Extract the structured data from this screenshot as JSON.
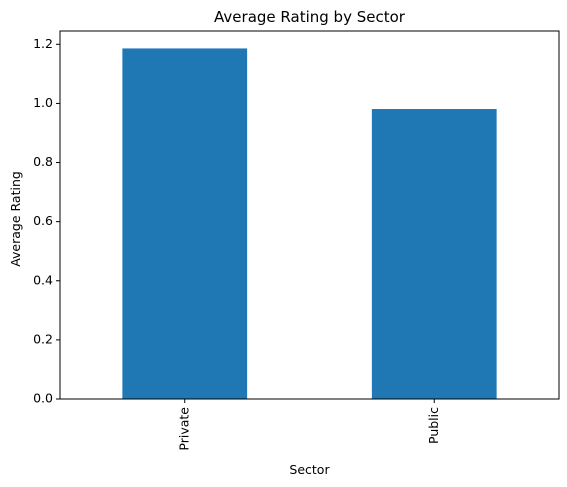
{
  "chart_data": {
    "type": "bar",
    "title": "Average Rating by Sector",
    "xlabel": "Sector",
    "ylabel": "Average Rating",
    "categories": [
      "Private",
      "Public"
    ],
    "values": [
      1.186,
      0.981
    ],
    "ylim": [
      0,
      1.245
    ],
    "yticks": [
      "0.0",
      "0.2",
      "0.4",
      "0.6",
      "0.8",
      "1.0",
      "1.2"
    ],
    "bar_color": "#1f77b4",
    "grid": false,
    "legend": "none",
    "x_tick_rotation": "vertical"
  }
}
